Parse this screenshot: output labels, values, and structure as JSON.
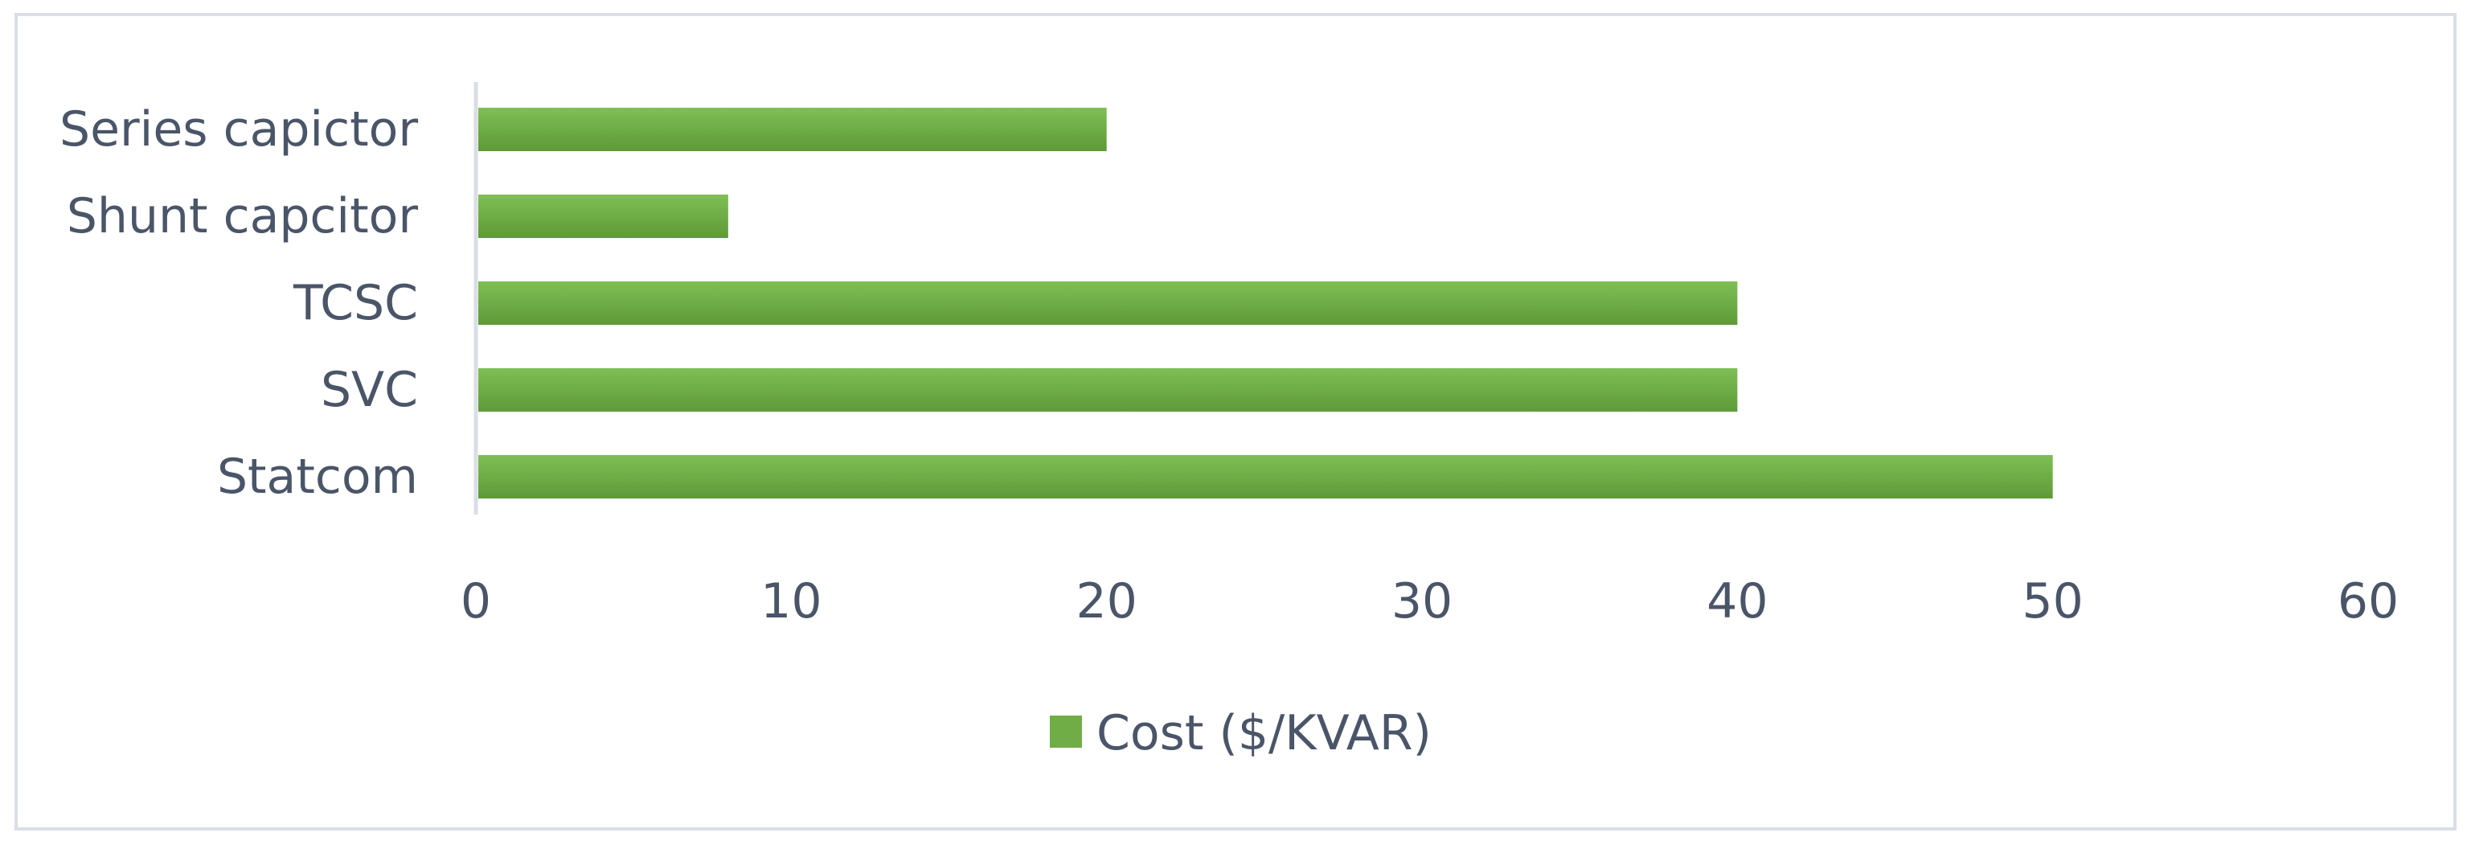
{
  "chart_data": {
    "type": "bar",
    "orientation": "horizontal",
    "categories": [
      "Series capictor",
      "Shunt capcitor",
      "TCSC",
      "SVC",
      "Statcom"
    ],
    "series": [
      {
        "name": "Cost ($/KVAR)",
        "values": [
          20,
          8,
          40,
          40,
          50
        ],
        "color": "#70ad47"
      }
    ],
    "xlim": [
      0,
      60
    ],
    "xticks": [
      0,
      10,
      20,
      30,
      40,
      50,
      60
    ],
    "grid": false,
    "legend": {
      "position": "bottom",
      "label": "Cost ($/KVAR)"
    },
    "title": "",
    "xlabel": "",
    "ylabel": ""
  },
  "colors": {
    "bar": "#70ad47",
    "bar_light": "#7fbf54",
    "bar_dark": "#5e9a38",
    "text": "#4a5568",
    "axis": "#d9dee6",
    "border": "#d9dee6"
  }
}
